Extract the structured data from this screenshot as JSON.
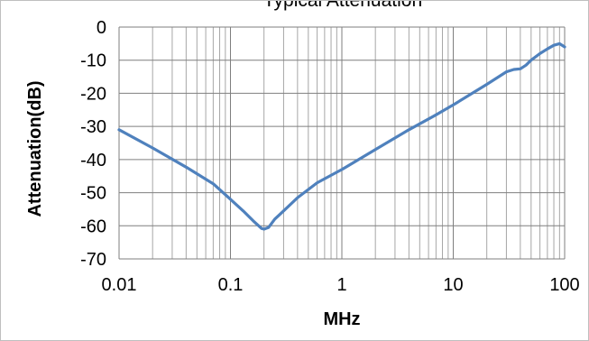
{
  "chart_data": {
    "type": "line",
    "title": "Typical Attenuation",
    "xlabel": "MHz",
    "ylabel": "Attenuation(dB)",
    "xscale": "log",
    "xlim": [
      0.01,
      100
    ],
    "ylim": [
      -70,
      0
    ],
    "grid": true,
    "legend": "none",
    "x_ticks": [
      "0.01",
      "0.1",
      "1",
      "10",
      "100"
    ],
    "y_ticks": [
      "0",
      "-10",
      "-20",
      "-30",
      "-40",
      "-50",
      "-60",
      "-70"
    ],
    "series": [
      {
        "color": "#4f81bd",
        "x": [
          0.01,
          0.02,
          0.04,
          0.07,
          0.1,
          0.13,
          0.16,
          0.19,
          0.2,
          0.22,
          0.25,
          0.3,
          0.4,
          0.6,
          1,
          2,
          4,
          7,
          10,
          20,
          30,
          35,
          40,
          45,
          50,
          60,
          70,
          80,
          90,
          100
        ],
        "y": [
          -31,
          -36.5,
          -42.3,
          -47.3,
          -52,
          -55.5,
          -58.5,
          -60.8,
          -61,
          -60.5,
          -58,
          -55.5,
          -51.5,
          -47,
          -43,
          -37,
          -31,
          -26.5,
          -23.5,
          -17.3,
          -13.5,
          -12.8,
          -12.6,
          -11.5,
          -10,
          -8,
          -6.6,
          -5.5,
          -5,
          -6
        ]
      }
    ]
  }
}
